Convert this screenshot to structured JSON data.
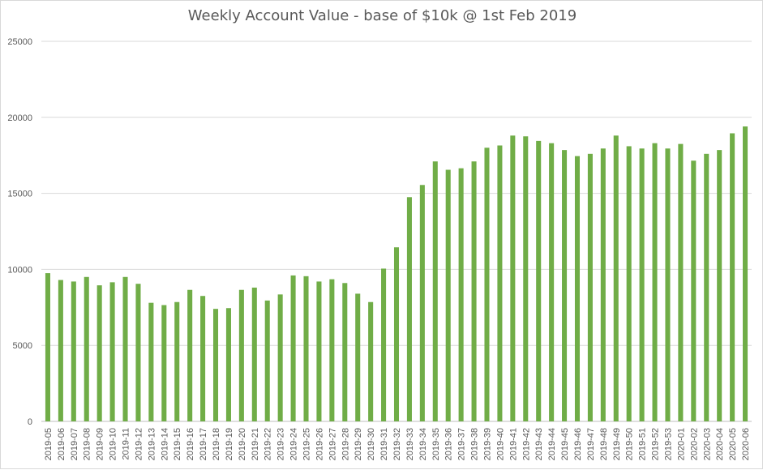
{
  "chart_data": {
    "type": "bar",
    "title": "Weekly Account Value - base of $10k @ 1st Feb 2019",
    "xlabel": "",
    "ylabel": "",
    "ylim": [
      0,
      25000
    ],
    "yticks": [
      "0",
      "5000",
      "10000",
      "15000",
      "20000",
      "25000"
    ],
    "grid": true,
    "bar_color": "#70ad47",
    "categories": [
      "2019-05",
      "2019-06",
      "2019-07",
      "2019-08",
      "2019-09",
      "2019-10",
      "2019-11",
      "2019-12",
      "2019-13",
      "2019-14",
      "2019-15",
      "2019-16",
      "2019-17",
      "2019-18",
      "2019-19",
      "2019-20",
      "2019-21",
      "2019-22",
      "2019-23",
      "2019-24",
      "2019-25",
      "2019-26",
      "2019-27",
      "2019-28",
      "2019-29",
      "2019-30",
      "2019-31",
      "2019-32",
      "2019-33",
      "2019-34",
      "2019-35",
      "2019-36",
      "2019-37",
      "2019-38",
      "2019-39",
      "2019-40",
      "2019-41",
      "2019-42",
      "2019-43",
      "2019-44",
      "2019-45",
      "2019-46",
      "2019-47",
      "2019-48",
      "2019-49",
      "2019-50",
      "2019-51",
      "2019-52",
      "2019-53",
      "2020-01",
      "2020-02",
      "2020-03",
      "2020-04",
      "2020-05",
      "2020-06"
    ],
    "values": [
      9750,
      9300,
      9200,
      9500,
      8950,
      9150,
      9500,
      9050,
      7800,
      7650,
      7850,
      8650,
      8250,
      7400,
      7450,
      8650,
      8800,
      7950,
      8350,
      9600,
      9550,
      9200,
      9350,
      9100,
      8400,
      7850,
      10050,
      11450,
      14750,
      15550,
      17100,
      16550,
      16650,
      17100,
      18000,
      18150,
      18800,
      18750,
      18450,
      18300,
      17850,
      17450,
      17600,
      17950,
      18800,
      18100,
      17950,
      18300,
      17950,
      18250,
      17150,
      17600,
      17850,
      18950,
      19400
    ]
  }
}
